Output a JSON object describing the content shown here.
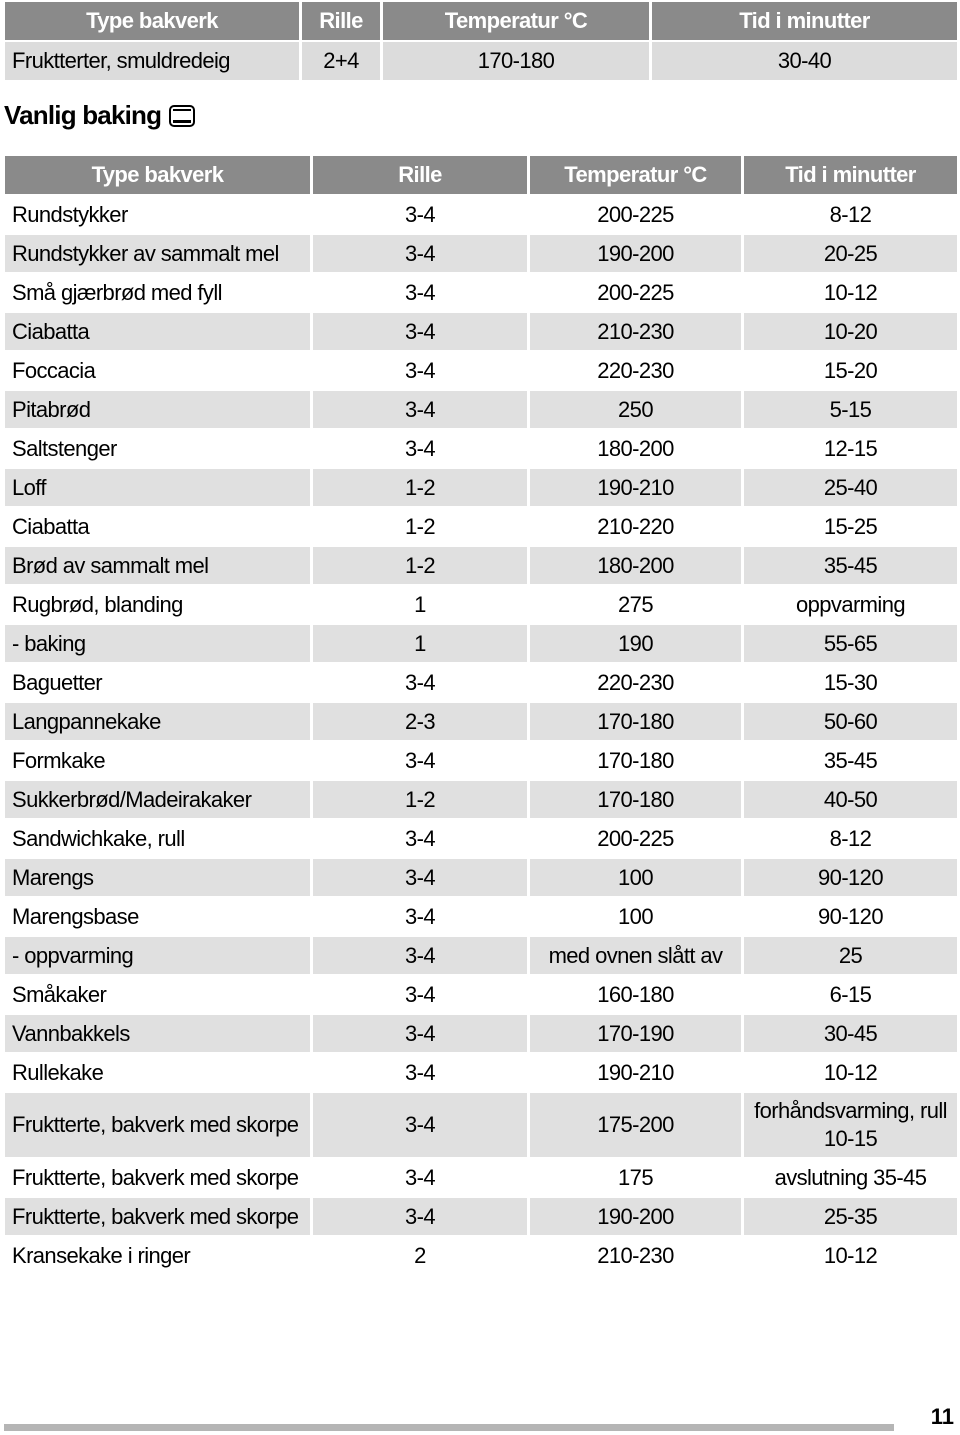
{
  "top_table": {
    "headers": [
      "Type bakverk",
      "Rille",
      "Temperatur °C",
      "Tid i minutter"
    ],
    "rows": [
      [
        "Fruktterter, smuldredeig",
        "2+4",
        "170-180",
        "30-40"
      ]
    ]
  },
  "section": {
    "title": "Vanlig baking",
    "icon": "oven-top-bottom-heat-icon"
  },
  "main_table": {
    "headers": [
      "Type bakverk",
      "Rille",
      "Temperatur °C",
      "Tid i minutter"
    ],
    "rows": [
      [
        "Rundstykker",
        "3-4",
        "200-225",
        "8-12"
      ],
      [
        "Rundstykker av sammalt mel",
        "3-4",
        "190-200",
        "20-25"
      ],
      [
        "Små gjærbrød med fyll",
        "3-4",
        "200-225",
        "10-12"
      ],
      [
        "Ciabatta",
        "3-4",
        "210-230",
        "10-20"
      ],
      [
        "Foccacia",
        "3-4",
        "220-230",
        "15-20"
      ],
      [
        "Pitabrød",
        "3-4",
        "250",
        "5-15"
      ],
      [
        "Saltstenger",
        "3-4",
        "180-200",
        "12-15"
      ],
      [
        "Loff",
        "1-2",
        "190-210",
        "25-40"
      ],
      [
        "Ciabatta",
        "1-2",
        "210-220",
        "15-25"
      ],
      [
        "Brød av sammalt mel",
        "1-2",
        "180-200",
        "35-45"
      ],
      [
        "Rugbrød, blanding",
        "1",
        "275",
        "oppvarming"
      ],
      [
        "- baking",
        "1",
        "190",
        "55-65"
      ],
      [
        "Baguetter",
        "3-4",
        "220-230",
        "15-30"
      ],
      [
        "Langpannekake",
        "2-3",
        "170-180",
        "50-60"
      ],
      [
        "Formkake",
        "3-4",
        "170-180",
        "35-45"
      ],
      [
        "Sukkerbrød/Madeirakaker",
        "1-2",
        "170-180",
        "40-50"
      ],
      [
        "Sandwichkake, rull",
        "3-4",
        "200-225",
        "8-12"
      ],
      [
        "Marengs",
        "3-4",
        "100",
        "90-120"
      ],
      [
        "Marengsbase",
        "3-4",
        "100",
        "90-120"
      ],
      [
        "- oppvarming",
        "3-4",
        "med ovnen slått av",
        "25"
      ],
      [
        "Småkaker",
        "3-4",
        "160-180",
        "6-15"
      ],
      [
        "Vannbakkels",
        "3-4",
        "170-190",
        "30-45"
      ],
      [
        "Rullekake",
        "3-4",
        "190-210",
        "10-12"
      ],
      [
        "Fruktterte, bakverk med skorpe",
        "3-4",
        "175-200",
        "forhåndsvarming, rull 10-15"
      ],
      [
        "Fruktterte, bakverk med skorpe",
        "3-4",
        "175",
        "avslutning 35-45"
      ],
      [
        "Fruktterte, bakverk med skorpe",
        "3-4",
        "190-200",
        "25-35"
      ],
      [
        "Kransekake i ringer",
        "2",
        "210-230",
        "10-12"
      ]
    ]
  },
  "footer": {
    "page_number": "11"
  }
}
